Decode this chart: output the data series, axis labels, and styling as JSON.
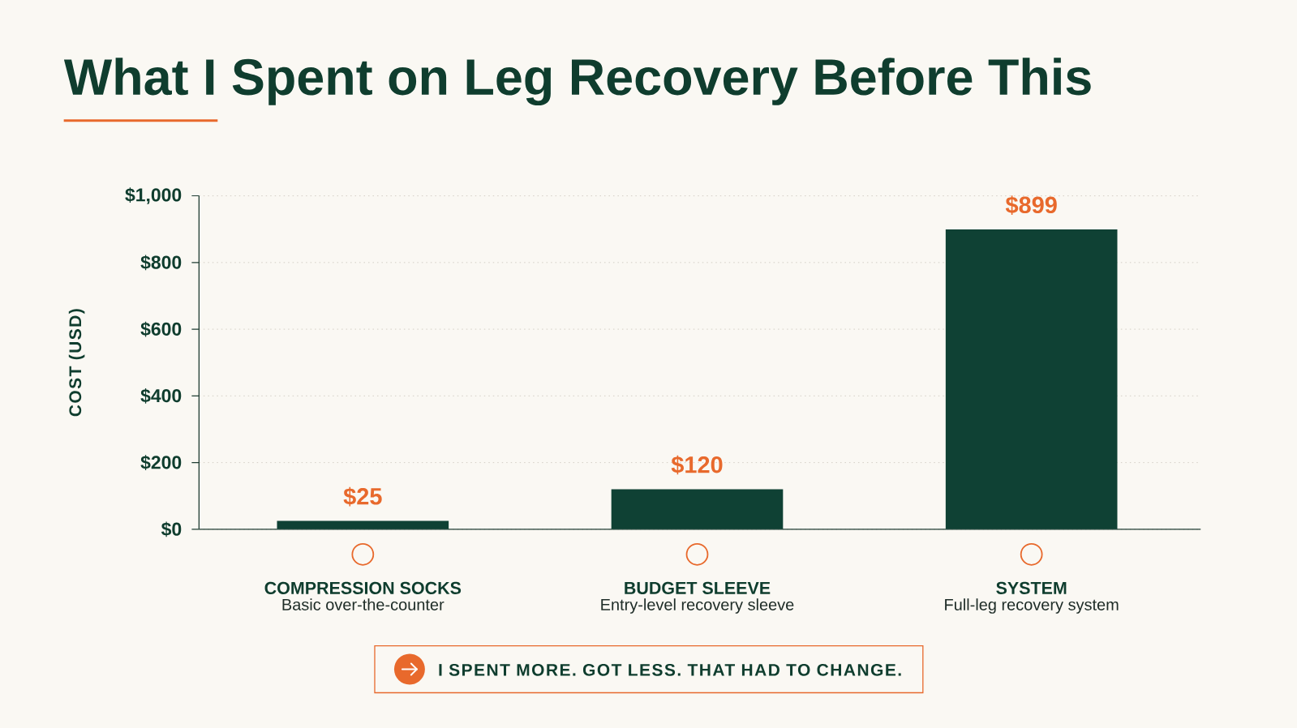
{
  "chart_data": {
    "type": "bar",
    "title": "What I Spent on Leg Recovery Before This",
    "ylabel": "COST (USD)",
    "categories": [
      "COMPRESSION SOCKS",
      "BUDGET SLEEVE",
      "SYSTEM"
    ],
    "values": [
      25,
      120,
      899
    ],
    "value_labels": [
      "$25",
      "$120",
      "$899"
    ],
    "color": "#0f4134",
    "ylim": [
      0,
      1000
    ],
    "yticks": [
      {
        "value": 0,
        "label": "$0"
      },
      {
        "value": 200,
        "label": "$200"
      },
      {
        "value": 400,
        "label": "$400"
      },
      {
        "value": 600,
        "label": "$600"
      },
      {
        "value": 800,
        "label": "$800"
      },
      {
        "value": 1000,
        "label": "$1,000"
      }
    ],
    "grid": "y",
    "annotations": [
      "Basic over-the-counter",
      "Entry-level recovery sleeve",
      "Full-leg recovery system",
      "I SPENT MORE. GOT LESS. THAT HAD TO CHANGE."
    ]
  }
}
